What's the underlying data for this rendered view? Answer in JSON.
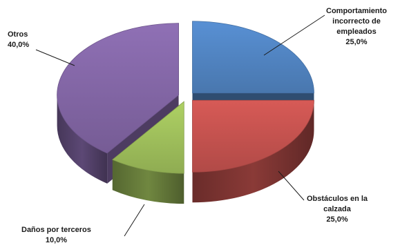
{
  "chart_data": {
    "type": "pie",
    "style": "3d-exploded",
    "slices": [
      {
        "label_lines": [
          "Comportamiento",
          "incorrecto de",
          "empleados"
        ],
        "value": 25.0,
        "value_label": "25,0%",
        "color": "#4f81bd"
      },
      {
        "label_lines": [
          "Obstáculos  en la",
          "calzada"
        ],
        "value": 25.0,
        "value_label": "25,0%",
        "color": "#c0504d"
      },
      {
        "label_lines": [
          "Daños por terceros"
        ],
        "value": 10.0,
        "value_label": "10,0%",
        "color": "#9bbb59"
      },
      {
        "label_lines": [
          "Otros"
        ],
        "value": 40.0,
        "value_label": "40,0%",
        "color": "#8064a2"
      }
    ]
  }
}
